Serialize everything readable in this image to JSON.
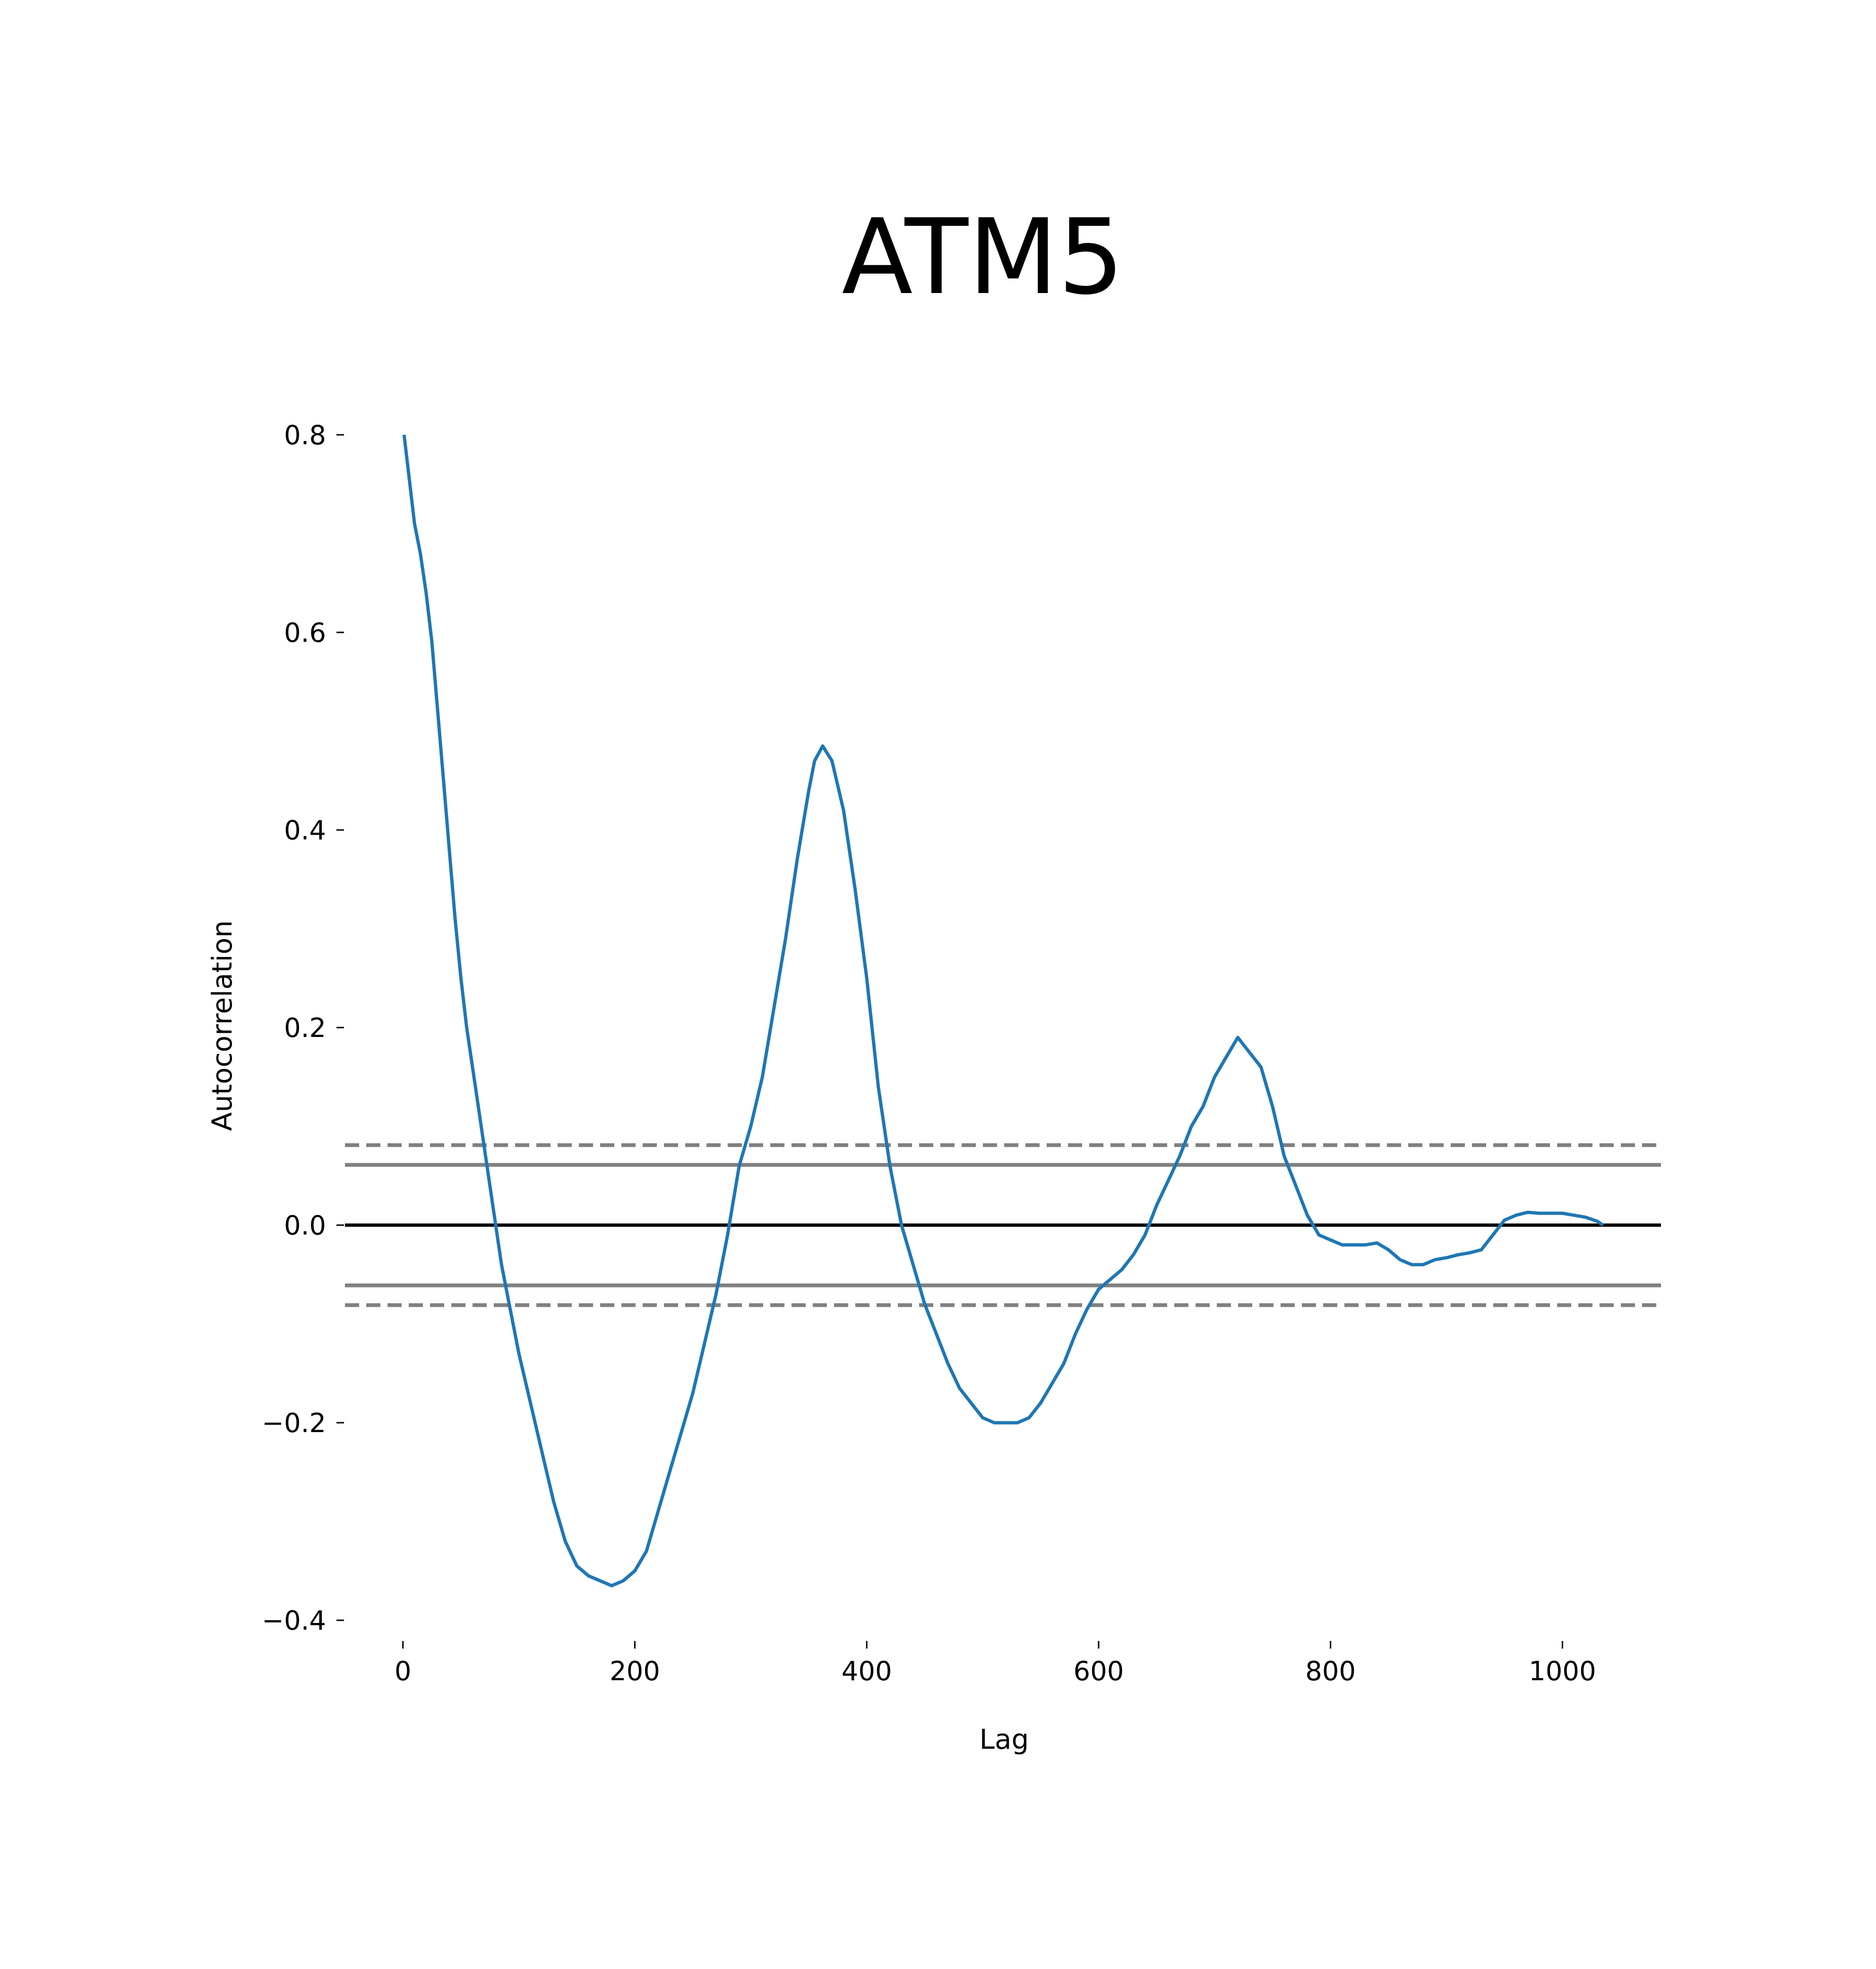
{
  "chart_data": {
    "type": "line",
    "title": "ATM5",
    "xlabel": "Lag",
    "ylabel": "Autocorrelation",
    "xlim": [
      -50,
      1085
    ],
    "ylim": [
      -0.42,
      0.8
    ],
    "x_ticks": [
      0,
      200,
      400,
      600,
      800,
      1000
    ],
    "x_tick_labels": [
      "0",
      "200",
      "400",
      "600",
      "800",
      "1000"
    ],
    "y_ticks": [
      -0.4,
      -0.2,
      0.0,
      0.2,
      0.4,
      0.6,
      0.8
    ],
    "y_tick_labels": [
      "−0.4",
      "−0.2",
      "0.0",
      "0.2",
      "0.4",
      "0.6",
      "0.8"
    ],
    "grid": false,
    "reference_lines": [
      {
        "y": 0.0,
        "style": "solid",
        "color": "#000000"
      },
      {
        "y": 0.061,
        "style": "solid",
        "color": "#808080"
      },
      {
        "y": -0.061,
        "style": "solid",
        "color": "#808080"
      },
      {
        "y": 0.081,
        "style": "dashed",
        "color": "#808080"
      },
      {
        "y": -0.081,
        "style": "dashed",
        "color": "#808080"
      }
    ],
    "series": [
      {
        "color": "#1f77b4",
        "points": [
          [
            1,
            0.8
          ],
          [
            5,
            0.76
          ],
          [
            10,
            0.71
          ],
          [
            15,
            0.68
          ],
          [
            20,
            0.64
          ],
          [
            25,
            0.59
          ],
          [
            30,
            0.52
          ],
          [
            35,
            0.45
          ],
          [
            40,
            0.38
          ],
          [
            45,
            0.31
          ],
          [
            50,
            0.25
          ],
          [
            55,
            0.2
          ],
          [
            60,
            0.16
          ],
          [
            65,
            0.12
          ],
          [
            70,
            0.08
          ],
          [
            75,
            0.04
          ],
          [
            80,
            0.0
          ],
          [
            85,
            -0.04
          ],
          [
            90,
            -0.07
          ],
          [
            95,
            -0.1
          ],
          [
            100,
            -0.13
          ],
          [
            110,
            -0.18
          ],
          [
            120,
            -0.23
          ],
          [
            130,
            -0.28
          ],
          [
            140,
            -0.32
          ],
          [
            150,
            -0.345
          ],
          [
            160,
            -0.355
          ],
          [
            170,
            -0.36
          ],
          [
            180,
            -0.365
          ],
          [
            190,
            -0.36
          ],
          [
            200,
            -0.35
          ],
          [
            210,
            -0.33
          ],
          [
            220,
            -0.29
          ],
          [
            230,
            -0.25
          ],
          [
            240,
            -0.21
          ],
          [
            250,
            -0.17
          ],
          [
            260,
            -0.12
          ],
          [
            270,
            -0.07
          ],
          [
            280,
            -0.01
          ],
          [
            290,
            0.06
          ],
          [
            300,
            0.1
          ],
          [
            310,
            0.15
          ],
          [
            320,
            0.22
          ],
          [
            330,
            0.29
          ],
          [
            340,
            0.37
          ],
          [
            350,
            0.44
          ],
          [
            355,
            0.47
          ],
          [
            362,
            0.485
          ],
          [
            370,
            0.47
          ],
          [
            380,
            0.42
          ],
          [
            390,
            0.34
          ],
          [
            400,
            0.25
          ],
          [
            410,
            0.14
          ],
          [
            420,
            0.06
          ],
          [
            430,
            0.0
          ],
          [
            440,
            -0.04
          ],
          [
            450,
            -0.08
          ],
          [
            460,
            -0.11
          ],
          [
            470,
            -0.14
          ],
          [
            480,
            -0.165
          ],
          [
            490,
            -0.18
          ],
          [
            500,
            -0.195
          ],
          [
            510,
            -0.2
          ],
          [
            520,
            -0.2
          ],
          [
            530,
            -0.2
          ],
          [
            540,
            -0.195
          ],
          [
            550,
            -0.18
          ],
          [
            560,
            -0.16
          ],
          [
            570,
            -0.14
          ],
          [
            580,
            -0.11
          ],
          [
            590,
            -0.085
          ],
          [
            600,
            -0.065
          ],
          [
            610,
            -0.055
          ],
          [
            620,
            -0.045
          ],
          [
            630,
            -0.03
          ],
          [
            640,
            -0.01
          ],
          [
            650,
            0.02
          ],
          [
            660,
            0.045
          ],
          [
            670,
            0.07
          ],
          [
            680,
            0.1
          ],
          [
            690,
            0.12
          ],
          [
            700,
            0.15
          ],
          [
            710,
            0.17
          ],
          [
            720,
            0.19
          ],
          [
            730,
            0.175
          ],
          [
            740,
            0.16
          ],
          [
            750,
            0.12
          ],
          [
            760,
            0.07
          ],
          [
            770,
            0.04
          ],
          [
            780,
            0.01
          ],
          [
            790,
            -0.01
          ],
          [
            800,
            -0.015
          ],
          [
            810,
            -0.02
          ],
          [
            820,
            -0.02
          ],
          [
            830,
            -0.02
          ],
          [
            840,
            -0.018
          ],
          [
            850,
            -0.025
          ],
          [
            860,
            -0.035
          ],
          [
            870,
            -0.04
          ],
          [
            880,
            -0.04
          ],
          [
            890,
            -0.035
          ],
          [
            900,
            -0.033
          ],
          [
            910,
            -0.03
          ],
          [
            920,
            -0.028
          ],
          [
            930,
            -0.025
          ],
          [
            940,
            -0.01
          ],
          [
            950,
            0.005
          ],
          [
            960,
            0.01
          ],
          [
            970,
            0.013
          ],
          [
            980,
            0.012
          ],
          [
            990,
            0.012
          ],
          [
            1000,
            0.012
          ],
          [
            1010,
            0.01
          ],
          [
            1020,
            0.008
          ],
          [
            1030,
            0.004
          ],
          [
            1035,
            0.0
          ]
        ]
      }
    ]
  },
  "colors": {
    "series_line": "#1f77b4",
    "zero_line": "#000000",
    "band_line": "#808080"
  }
}
